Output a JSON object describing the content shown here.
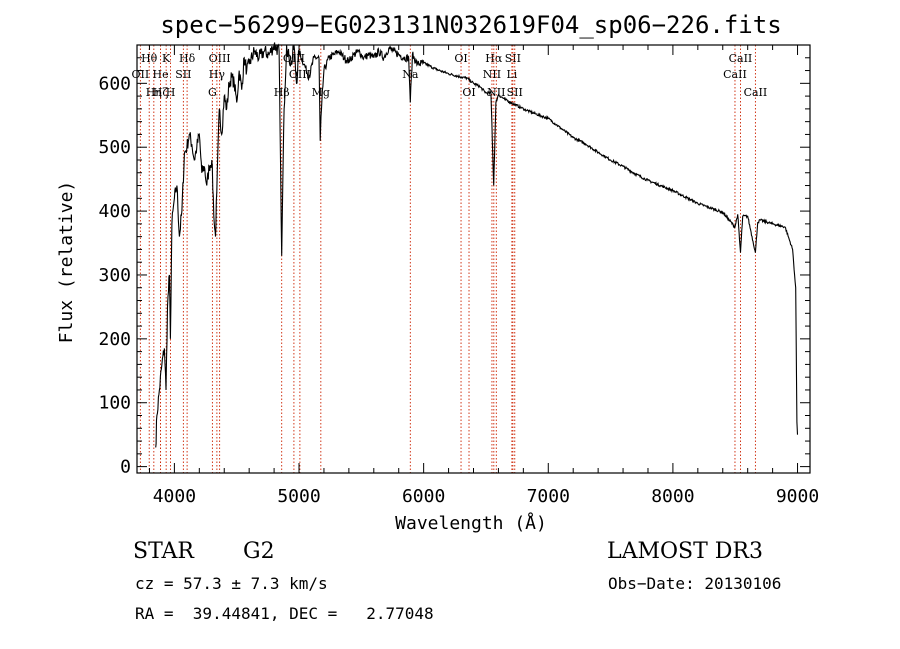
{
  "header": {
    "title": "spec−56299−EG023131N032619F04_sp06−226.fits"
  },
  "info": {
    "object_class": "STAR",
    "subclass": "G2",
    "survey": "LAMOST DR3",
    "redshift": "cz = 57.3 ± 7.3 km/s",
    "obs_date": "Obs−Date: 20130106",
    "coords": "RA =  39.44841, DEC =   2.77048"
  },
  "chart_data": {
    "type": "line",
    "title": "spec−56299−EG023131N032619F04_sp06−226.fits",
    "xlabel": "Wavelength (Å)",
    "ylabel": "Flux (relative)",
    "xlim": [
      3700,
      9100
    ],
    "ylim": [
      -10,
      660
    ],
    "x_ticks": [
      4000,
      5000,
      6000,
      7000,
      8000,
      9000
    ],
    "y_ticks": [
      0,
      100,
      200,
      300,
      400,
      500,
      600
    ],
    "series": [
      {
        "name": "spectrum",
        "x": [
          3850,
          3860,
          3880,
          3900,
          3920,
          3933,
          3945,
          3960,
          3968,
          3980,
          4000,
          4020,
          4040,
          4060,
          4080,
          4100,
          4120,
          4140,
          4160,
          4180,
          4200,
          4220,
          4240,
          4260,
          4280,
          4300,
          4320,
          4330,
          4340,
          4360,
          4380,
          4400,
          4420,
          4440,
          4460,
          4480,
          4500,
          4520,
          4540,
          4560,
          4580,
          4600,
          4640,
          4680,
          4720,
          4760,
          4800,
          4840,
          4861,
          4880,
          4900,
          4920,
          4940,
          4960,
          4980,
          5000,
          5040,
          5080,
          5120,
          5160,
          5170,
          5180,
          5200,
          5240,
          5280,
          5320,
          5360,
          5400,
          5440,
          5480,
          5520,
          5560,
          5600,
          5640,
          5680,
          5720,
          5760,
          5800,
          5840,
          5880,
          5893,
          5910,
          5950,
          6000,
          6100,
          6200,
          6300,
          6350,
          6400,
          6450,
          6500,
          6540,
          6562,
          6580,
          6600,
          6650,
          6700,
          6800,
          6900,
          7000,
          7100,
          7200,
          7300,
          7400,
          7500,
          7600,
          7700,
          7800,
          7900,
          8000,
          8100,
          8200,
          8300,
          8400,
          8498,
          8520,
          8542,
          8560,
          8600,
          8662,
          8680,
          8700,
          8800,
          8900,
          8960,
          8985,
          8995,
          9000
        ],
        "values": [
          30,
          80,
          120,
          160,
          185,
          120,
          250,
          300,
          200,
          380,
          420,
          440,
          360,
          400,
          490,
          500,
          520,
          505,
          480,
          500,
          520,
          460,
          470,
          440,
          470,
          480,
          380,
          360,
          430,
          560,
          520,
          580,
          560,
          600,
          610,
          600,
          570,
          620,
          590,
          640,
          620,
          630,
          650,
          640,
          650,
          645,
          660,
          650,
          330,
          560,
          660,
          640,
          630,
          660,
          600,
          650,
          630,
          610,
          640,
          640,
          510,
          560,
          620,
          640,
          645,
          650,
          640,
          635,
          645,
          650,
          640,
          645,
          640,
          650,
          640,
          655,
          650,
          645,
          640,
          640,
          570,
          645,
          630,
          632,
          622,
          615,
          610,
          608,
          600,
          595,
          585,
          585,
          440,
          570,
          582,
          575,
          570,
          560,
          552,
          545,
          530,
          515,
          505,
          492,
          480,
          470,
          458,
          448,
          440,
          432,
          422,
          412,
          405,
          398,
          375,
          395,
          335,
          392,
          392,
          335,
          382,
          386,
          380,
          375,
          340,
          280,
          70,
          50
        ]
      }
    ],
    "lines": [
      {
        "name": "Hθ",
        "wave": 3798,
        "label_row": 1
      },
      {
        "name": "OII",
        "wave": 3727,
        "label_row": 2
      },
      {
        "name": "Hη",
        "wave": 3835,
        "label_row": 3
      },
      {
        "name": "K",
        "wave": 3934,
        "label_row": 1
      },
      {
        "name": "He",
        "wave": 3889,
        "label_row": 2
      },
      {
        "name": "Hζ",
        "wave": 3889,
        "label_row": 3
      },
      {
        "name": "H",
        "wave": 3969,
        "label_row": 3
      },
      {
        "name": "Hδ",
        "wave": 4102,
        "label_row": 1
      },
      {
        "name": "SII",
        "wave": 4072,
        "label_row": 2
      },
      {
        "name": "OIII",
        "wave": 4363,
        "label_row": 1
      },
      {
        "name": "Hγ",
        "wave": 4341,
        "label_row": 2
      },
      {
        "name": "G",
        "wave": 4305,
        "label_row": 3
      },
      {
        "name": "Hβ",
        "wave": 4861,
        "label_row": 3
      },
      {
        "name": "OIII",
        "wave": 4959,
        "label_row": 1
      },
      {
        "name": "OIII",
        "wave": 5007,
        "label_row": 2
      },
      {
        "name": "Mg",
        "wave": 5175,
        "label_row": 3
      },
      {
        "name": "Na",
        "wave": 5893,
        "label_row": 2
      },
      {
        "name": "OI",
        "wave": 6300,
        "label_row": 1
      },
      {
        "name": "OI",
        "wave": 6364,
        "label_row": 3
      },
      {
        "name": "Hα",
        "wave": 6563,
        "label_row": 1
      },
      {
        "name": "SII",
        "wave": 6716,
        "label_row": 1
      },
      {
        "name": "NII",
        "wave": 6548,
        "label_row": 2
      },
      {
        "name": "Li",
        "wave": 6708,
        "label_row": 2
      },
      {
        "name": "NII",
        "wave": 6583,
        "label_row": 3
      },
      {
        "name": "SII",
        "wave": 6731,
        "label_row": 3
      },
      {
        "name": "CaII",
        "wave": 8542,
        "label_row": 1
      },
      {
        "name": "CaII",
        "wave": 8498,
        "label_row": 2
      },
      {
        "name": "CaII",
        "wave": 8662,
        "label_row": 3
      }
    ]
  }
}
